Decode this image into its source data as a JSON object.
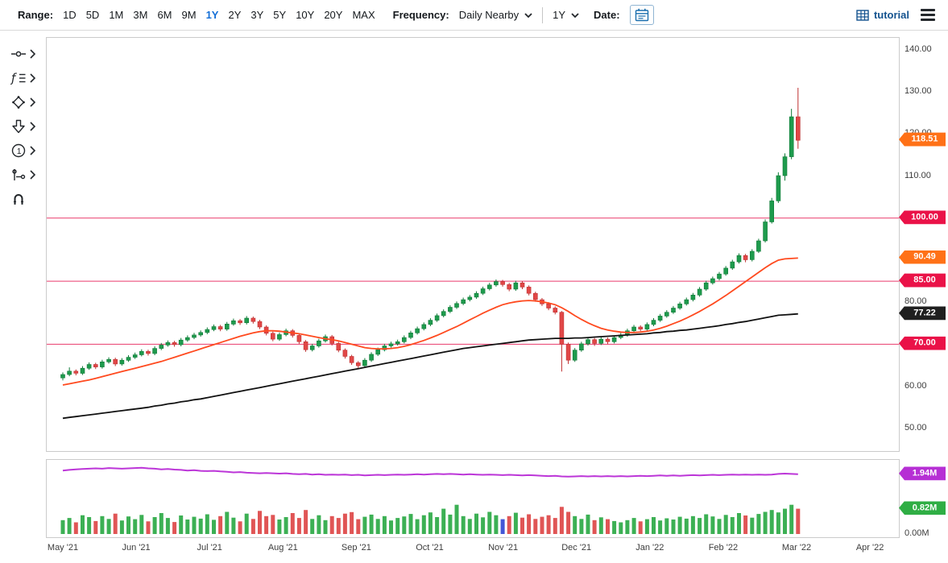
{
  "toolbar": {
    "range_label": "Range:",
    "range_options": [
      "1D",
      "5D",
      "1M",
      "3M",
      "6M",
      "9M",
      "1Y",
      "2Y",
      "3Y",
      "5Y",
      "10Y",
      "20Y",
      "MAX"
    ],
    "active_range": "1Y",
    "frequency_label": "Frequency:",
    "frequency_value": "Daily Nearby",
    "period_value": "1Y",
    "date_label": "Date:",
    "tutorial_label": "tutorial"
  },
  "sidebar": {
    "tools": [
      "crosshair-line-tool",
      "indicators-tool",
      "shapes-tool",
      "arrow-annotation-tool",
      "number-annotation-tool",
      "compare-tool",
      "magnet-tool"
    ]
  },
  "chart": {
    "y_axis_labels": [
      140,
      130,
      120,
      110,
      100,
      90,
      80,
      70,
      60,
      50
    ],
    "x_axis_labels": [
      "May '21",
      "Jun '21",
      "Jul '21",
      "Aug '21",
      "Sep '21",
      "Oct '21",
      "Nov '21",
      "Dec '21",
      "Jan '22",
      "Feb '22",
      "Mar '22",
      "Apr '22"
    ],
    "price_badges": [
      {
        "value": 118.51,
        "label": "118.51",
        "color": "#ff7117"
      },
      {
        "value": 100.0,
        "label": "100.00",
        "color": "#ea1248"
      },
      {
        "value": 90.49,
        "label": "90.49",
        "color": "#ff7117"
      },
      {
        "value": 85.0,
        "label": "85.00",
        "color": "#ea1248"
      },
      {
        "value": 77.22,
        "label": "77.22",
        "color": "#1f1f1f"
      },
      {
        "value": 70.0,
        "label": "70.00",
        "color": "#ea1248"
      }
    ],
    "volume_badges": [
      {
        "value": 1.94,
        "label": "1.94M",
        "color": "#b62fd4"
      },
      {
        "value": 0.82,
        "label": "0.82M",
        "color": "#2fae44"
      }
    ],
    "volume_axis_label": "0.00M"
  },
  "chart_data": {
    "type": "candlestick",
    "title": "",
    "x_months": [
      "May '21",
      "Jun '21",
      "Jul '21",
      "Aug '21",
      "Sep '21",
      "Oct '21",
      "Nov '21",
      "Dec '21",
      "Jan '22",
      "Feb '22",
      "Mar '22",
      "Apr '22"
    ],
    "ylim": [
      44.6,
      142.87
    ],
    "volume_ylim": [
      0,
      2.3
    ],
    "hlines": [
      100,
      85,
      70
    ],
    "last_price": 118.51,
    "ma_fast_last": 90.49,
    "ma_slow_last": 77.22,
    "open_interest_last": 1.94,
    "volume_last": 0.82,
    "colors": {
      "up": "#1e9b4d",
      "up_stroke": "#0f7a37",
      "down": "#e14747",
      "down_stroke": "#bf3030",
      "ma_fast": "#ff4a1f",
      "ma_slow": "#111111",
      "open_interest": "#bc36d8",
      "hline": "#ea3a6c",
      "vol_up": "#3cb054",
      "vol_down": "#e05555",
      "vol_blue": "#4356d6"
    },
    "volume_blue_index": 67,
    "candles": [
      [
        62.0,
        63.3,
        61.4,
        62.8
      ],
      [
        62.8,
        64.5,
        62.4,
        63.6
      ],
      [
        63.6,
        64.0,
        62.6,
        63.1
      ],
      [
        63.1,
        64.8,
        62.7,
        64.3
      ],
      [
        64.3,
        65.7,
        63.9,
        65.2
      ],
      [
        65.2,
        65.6,
        64.1,
        64.6
      ],
      [
        64.6,
        66.3,
        64.2,
        65.8
      ],
      [
        65.8,
        66.9,
        65.4,
        66.4
      ],
      [
        66.4,
        66.8,
        64.8,
        65.3
      ],
      [
        65.3,
        66.7,
        64.9,
        66.2
      ],
      [
        66.2,
        67.4,
        65.8,
        66.9
      ],
      [
        66.9,
        68.0,
        66.5,
        67.5
      ],
      [
        67.5,
        68.8,
        67.1,
        68.3
      ],
      [
        68.3,
        68.7,
        67.3,
        67.8
      ],
      [
        67.8,
        69.5,
        67.4,
        69.0
      ],
      [
        69.0,
        70.3,
        68.6,
        69.8
      ],
      [
        69.8,
        70.9,
        69.4,
        70.4
      ],
      [
        70.4,
        70.8,
        69.4,
        69.9
      ],
      [
        69.9,
        71.5,
        69.5,
        71.0
      ],
      [
        71.0,
        72.1,
        70.6,
        71.6
      ],
      [
        71.6,
        72.7,
        71.2,
        72.2
      ],
      [
        72.2,
        73.3,
        71.8,
        72.8
      ],
      [
        72.8,
        74.0,
        72.4,
        73.5
      ],
      [
        73.5,
        74.7,
        73.1,
        74.2
      ],
      [
        74.2,
        74.6,
        73.1,
        73.6
      ],
      [
        73.6,
        75.3,
        73.2,
        74.8
      ],
      [
        74.8,
        76.1,
        74.4,
        75.6
      ],
      [
        75.6,
        76.0,
        74.6,
        75.1
      ],
      [
        75.1,
        76.7,
        74.7,
        76.2
      ],
      [
        76.2,
        76.6,
        74.9,
        75.4
      ],
      [
        75.4,
        75.8,
        73.6,
        74.1
      ],
      [
        74.1,
        74.5,
        72.1,
        72.6
      ],
      [
        72.6,
        73.0,
        70.7,
        71.2
      ],
      [
        71.2,
        72.8,
        70.8,
        72.3
      ],
      [
        72.3,
        73.7,
        71.9,
        73.2
      ],
      [
        73.2,
        73.6,
        71.6,
        72.1
      ],
      [
        72.1,
        72.5,
        70.1,
        70.6
      ],
      [
        70.6,
        71.0,
        68.2,
        68.7
      ],
      [
        68.7,
        70.1,
        68.3,
        69.6
      ],
      [
        69.6,
        71.3,
        69.2,
        70.8
      ],
      [
        70.8,
        72.3,
        70.4,
        71.8
      ],
      [
        71.8,
        72.2,
        69.7,
        70.2
      ],
      [
        70.2,
        70.6,
        68.1,
        68.6
      ],
      [
        68.6,
        69.0,
        66.6,
        67.1
      ],
      [
        67.1,
        67.5,
        65.1,
        65.6
      ],
      [
        65.6,
        66.0,
        64.3,
        64.9
      ],
      [
        64.9,
        66.7,
        64.5,
        66.2
      ],
      [
        66.2,
        68.1,
        65.8,
        67.6
      ],
      [
        67.6,
        69.2,
        67.2,
        68.7
      ],
      [
        68.7,
        70.1,
        68.3,
        69.6
      ],
      [
        69.6,
        70.6,
        69.2,
        70.1
      ],
      [
        70.1,
        71.1,
        69.7,
        70.6
      ],
      [
        70.6,
        72.1,
        70.2,
        71.6
      ],
      [
        71.6,
        73.2,
        71.2,
        72.7
      ],
      [
        72.7,
        74.2,
        72.3,
        73.7
      ],
      [
        73.7,
        75.2,
        73.3,
        74.7
      ],
      [
        74.7,
        76.2,
        74.3,
        75.7
      ],
      [
        75.7,
        77.3,
        75.3,
        76.8
      ],
      [
        76.8,
        78.3,
        76.4,
        77.8
      ],
      [
        77.8,
        79.3,
        77.4,
        78.8
      ],
      [
        78.8,
        80.2,
        78.4,
        79.7
      ],
      [
        79.7,
        81.1,
        79.3,
        80.6
      ],
      [
        80.6,
        81.7,
        80.2,
        81.2
      ],
      [
        81.2,
        82.6,
        80.8,
        82.1
      ],
      [
        82.1,
        83.7,
        81.7,
        83.2
      ],
      [
        83.2,
        84.6,
        82.8,
        84.1
      ],
      [
        84.1,
        85.4,
        83.7,
        84.9
      ],
      [
        84.9,
        85.3,
        83.7,
        84.2
      ],
      [
        84.2,
        84.6,
        82.6,
        83.1
      ],
      [
        83.1,
        85.1,
        82.7,
        84.6
      ],
      [
        84.6,
        85.0,
        83.1,
        83.6
      ],
      [
        83.6,
        84.0,
        81.6,
        82.1
      ],
      [
        82.1,
        82.5,
        80.1,
        80.6
      ],
      [
        80.6,
        81.0,
        79.1,
        79.6
      ],
      [
        79.6,
        80.0,
        78.1,
        78.6
      ],
      [
        78.6,
        79.0,
        77.1,
        77.6
      ],
      [
        77.6,
        77.9,
        63.5,
        70.0
      ],
      [
        70.0,
        70.4,
        65.3,
        66.2
      ],
      [
        66.2,
        69.1,
        65.8,
        68.6
      ],
      [
        68.6,
        70.6,
        68.2,
        70.1
      ],
      [
        70.1,
        71.6,
        69.7,
        71.1
      ],
      [
        71.1,
        71.5,
        69.6,
        70.2
      ],
      [
        70.2,
        71.7,
        69.8,
        71.2
      ],
      [
        71.2,
        71.6,
        70.0,
        70.6
      ],
      [
        70.6,
        72.1,
        70.2,
        71.6
      ],
      [
        71.6,
        72.7,
        71.2,
        72.2
      ],
      [
        72.2,
        73.7,
        71.8,
        73.2
      ],
      [
        73.2,
        74.6,
        72.8,
        74.1
      ],
      [
        74.1,
        74.5,
        73.1,
        73.6
      ],
      [
        73.6,
        75.2,
        73.2,
        74.7
      ],
      [
        74.7,
        76.2,
        74.3,
        75.7
      ],
      [
        75.7,
        77.2,
        75.3,
        76.7
      ],
      [
        76.7,
        78.1,
        76.3,
        77.6
      ],
      [
        77.6,
        79.1,
        77.2,
        78.6
      ],
      [
        78.6,
        80.1,
        78.2,
        79.6
      ],
      [
        79.6,
        81.1,
        79.2,
        80.6
      ],
      [
        80.6,
        82.2,
        80.2,
        81.7
      ],
      [
        81.7,
        83.6,
        81.3,
        83.1
      ],
      [
        83.1,
        85.1,
        82.7,
        84.6
      ],
      [
        84.6,
        86.1,
        84.2,
        85.6
      ],
      [
        85.6,
        87.2,
        85.2,
        86.7
      ],
      [
        86.7,
        88.6,
        86.3,
        88.1
      ],
      [
        88.1,
        90.1,
        87.7,
        89.6
      ],
      [
        89.6,
        91.6,
        89.2,
        91.1
      ],
      [
        91.1,
        91.5,
        89.5,
        90.1
      ],
      [
        90.1,
        92.6,
        89.7,
        92.1
      ],
      [
        92.1,
        95.1,
        91.7,
        94.6
      ],
      [
        94.6,
        99.7,
        94.2,
        99.1
      ],
      [
        99.1,
        104.8,
        98.7,
        104.1
      ],
      [
        104.1,
        110.9,
        103.6,
        110.1
      ],
      [
        110.1,
        115.4,
        108.9,
        114.6
      ],
      [
        114.6,
        126.0,
        114.0,
        124.1
      ],
      [
        124.1,
        131.0,
        116.5,
        118.51
      ]
    ],
    "volumes": [
      0.45,
      0.52,
      0.38,
      0.61,
      0.55,
      0.42,
      0.58,
      0.49,
      0.66,
      0.44,
      0.57,
      0.48,
      0.62,
      0.41,
      0.55,
      0.68,
      0.52,
      0.39,
      0.6,
      0.47,
      0.56,
      0.5,
      0.64,
      0.46,
      0.58,
      0.72,
      0.53,
      0.41,
      0.66,
      0.49,
      0.75,
      0.58,
      0.62,
      0.47,
      0.55,
      0.68,
      0.52,
      0.78,
      0.49,
      0.61,
      0.45,
      0.58,
      0.52,
      0.66,
      0.71,
      0.48,
      0.56,
      0.63,
      0.49,
      0.58,
      0.44,
      0.52,
      0.57,
      0.65,
      0.48,
      0.61,
      0.7,
      0.55,
      0.82,
      0.63,
      0.95,
      0.58,
      0.49,
      0.66,
      0.54,
      0.72,
      0.61,
      0.48,
      0.58,
      0.69,
      0.53,
      0.64,
      0.49,
      0.56,
      0.61,
      0.52,
      0.88,
      0.72,
      0.58,
      0.49,
      0.63,
      0.45,
      0.54,
      0.48,
      0.42,
      0.38,
      0.45,
      0.52,
      0.41,
      0.48,
      0.55,
      0.44,
      0.51,
      0.47,
      0.56,
      0.5,
      0.58,
      0.52,
      0.64,
      0.57,
      0.49,
      0.62,
      0.55,
      0.68,
      0.6,
      0.53,
      0.65,
      0.72,
      0.78,
      0.7,
      0.82,
      0.95,
      0.82
    ],
    "open_interest": [
      2.06,
      2.08,
      2.1,
      2.11,
      2.12,
      2.13,
      2.12,
      2.14,
      2.13,
      2.12,
      2.13,
      2.14,
      2.15,
      2.13,
      2.12,
      2.1,
      2.11,
      2.09,
      2.08,
      2.06,
      2.07,
      2.05,
      2.04,
      2.05,
      2.03,
      2.02,
      2.0,
      2.01,
      1.99,
      1.98,
      1.97,
      1.98,
      1.97,
      1.96,
      1.97,
      1.95,
      1.94,
      1.95,
      1.93,
      1.94,
      1.92,
      1.93,
      1.92,
      1.93,
      1.91,
      1.92,
      1.9,
      1.91,
      1.92,
      1.91,
      1.92,
      1.93,
      1.92,
      1.93,
      1.94,
      1.93,
      1.94,
      1.95,
      1.94,
      1.95,
      1.94,
      1.93,
      1.94,
      1.93,
      1.92,
      1.93,
      1.92,
      1.91,
      1.92,
      1.91,
      1.9,
      1.91,
      1.9,
      1.89,
      1.88,
      1.89,
      1.87,
      1.86,
      1.87,
      1.88,
      1.87,
      1.88,
      1.87,
      1.88,
      1.87,
      1.88,
      1.87,
      1.88,
      1.89,
      1.88,
      1.89,
      1.9,
      1.89,
      1.9,
      1.89,
      1.9,
      1.91,
      1.9,
      1.91,
      1.92,
      1.91,
      1.92,
      1.93,
      1.92,
      1.93,
      1.92,
      1.93,
      1.92,
      1.93,
      1.95,
      1.96,
      1.95,
      1.94
    ],
    "ma_fast": [
      60.3,
      60.6,
      60.9,
      61.2,
      61.5,
      61.9,
      62.3,
      62.7,
      63.1,
      63.5,
      63.9,
      64.3,
      64.7,
      65.1,
      65.5,
      65.9,
      66.4,
      66.9,
      67.4,
      67.9,
      68.4,
      68.9,
      69.4,
      69.9,
      70.4,
      70.9,
      71.4,
      71.9,
      72.3,
      72.7,
      73.0,
      73.2,
      73.2,
      73.1,
      72.9,
      72.7,
      72.5,
      72.2,
      71.9,
      71.6,
      71.3,
      71.1,
      70.8,
      70.4,
      70.0,
      69.6,
      69.2,
      69.0,
      68.9,
      68.9,
      69.0,
      69.2,
      69.5,
      69.9,
      70.4,
      70.9,
      71.5,
      72.1,
      72.8,
      73.5,
      74.2,
      75.0,
      75.8,
      76.6,
      77.4,
      78.1,
      78.8,
      79.4,
      79.8,
      80.1,
      80.3,
      80.4,
      80.3,
      80.1,
      79.8,
      79.4,
      78.7,
      77.8,
      76.8,
      75.9,
      75.1,
      74.4,
      73.8,
      73.4,
      73.1,
      72.9,
      72.8,
      72.8,
      72.9,
      73.1,
      73.4,
      73.8,
      74.3,
      74.9,
      75.5,
      76.2,
      77.0,
      77.8,
      78.7,
      79.6,
      80.6,
      81.6,
      82.7,
      83.8,
      84.9,
      86.0,
      87.1,
      88.2,
      89.2,
      90.0,
      90.3,
      90.4,
      90.49
    ],
    "ma_slow": [
      52.4,
      52.6,
      52.8,
      53.0,
      53.2,
      53.4,
      53.6,
      53.8,
      54.0,
      54.2,
      54.4,
      54.6,
      54.8,
      55.0,
      55.3,
      55.5,
      55.8,
      56.0,
      56.3,
      56.5,
      56.8,
      57.0,
      57.3,
      57.6,
      57.9,
      58.2,
      58.5,
      58.8,
      59.1,
      59.4,
      59.7,
      60.0,
      60.3,
      60.6,
      60.9,
      61.2,
      61.5,
      61.8,
      62.1,
      62.4,
      62.7,
      63.0,
      63.3,
      63.6,
      63.9,
      64.2,
      64.5,
      64.8,
      65.1,
      65.4,
      65.7,
      66.0,
      66.3,
      66.6,
      66.9,
      67.2,
      67.5,
      67.8,
      68.1,
      68.4,
      68.7,
      69.0,
      69.2,
      69.4,
      69.6,
      69.8,
      70.0,
      70.2,
      70.4,
      70.6,
      70.8,
      71.0,
      71.1,
      71.2,
      71.3,
      71.4,
      71.4,
      71.4,
      71.5,
      71.5,
      71.6,
      71.7,
      71.8,
      71.9,
      72.0,
      72.1,
      72.2,
      72.3,
      72.4,
      72.5,
      72.7,
      72.8,
      73.0,
      73.1,
      73.3,
      73.4,
      73.6,
      73.8,
      74.0,
      74.2,
      74.4,
      74.7,
      74.9,
      75.2,
      75.4,
      75.7,
      76.0,
      76.3,
      76.6,
      76.9,
      77.0,
      77.1,
      77.22
    ]
  }
}
